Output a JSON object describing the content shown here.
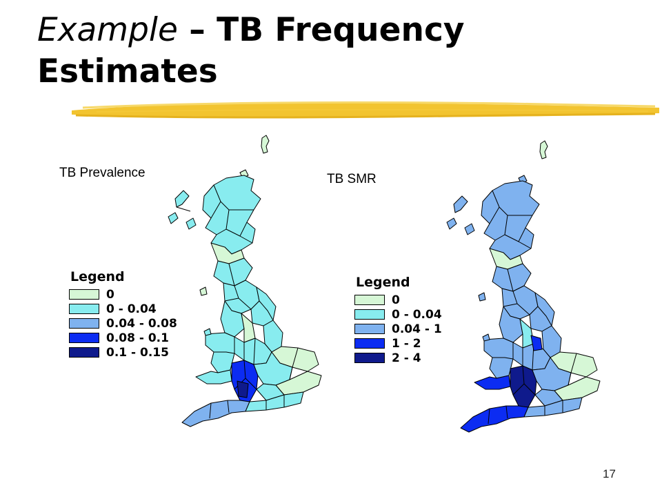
{
  "title": {
    "part1": "Example",
    "part2": " – TB Frequency Estimates"
  },
  "maps": [
    {
      "label": "TB Prevalence",
      "legend": {
        "title": "Legend",
        "items": [
          {
            "label": "0",
            "color": "#d6f7d6"
          },
          {
            "label": "0 - 0.04",
            "color": "#88ecef"
          },
          {
            "label": "0.04 - 0.08",
            "color": "#7fb2ef"
          },
          {
            "label": "0.08 - 0.1",
            "color": "#0c2cf2"
          },
          {
            "label": "0.1 - 0.15",
            "color": "#0f1a8c"
          }
        ]
      }
    },
    {
      "label": "TB SMR",
      "legend": {
        "title": "Legend",
        "items": [
          {
            "label": "0",
            "color": "#d6f7d6"
          },
          {
            "label": "0 - 0.04",
            "color": "#88ecef"
          },
          {
            "label": "0.04 - 1",
            "color": "#7fb2ef"
          },
          {
            "label": "1 - 2",
            "color": "#0c2cf2"
          },
          {
            "label": "2 - 4",
            "color": "#0f1a8c"
          }
        ]
      }
    }
  ],
  "page_number": "17",
  "accent_color": "#f2c430"
}
